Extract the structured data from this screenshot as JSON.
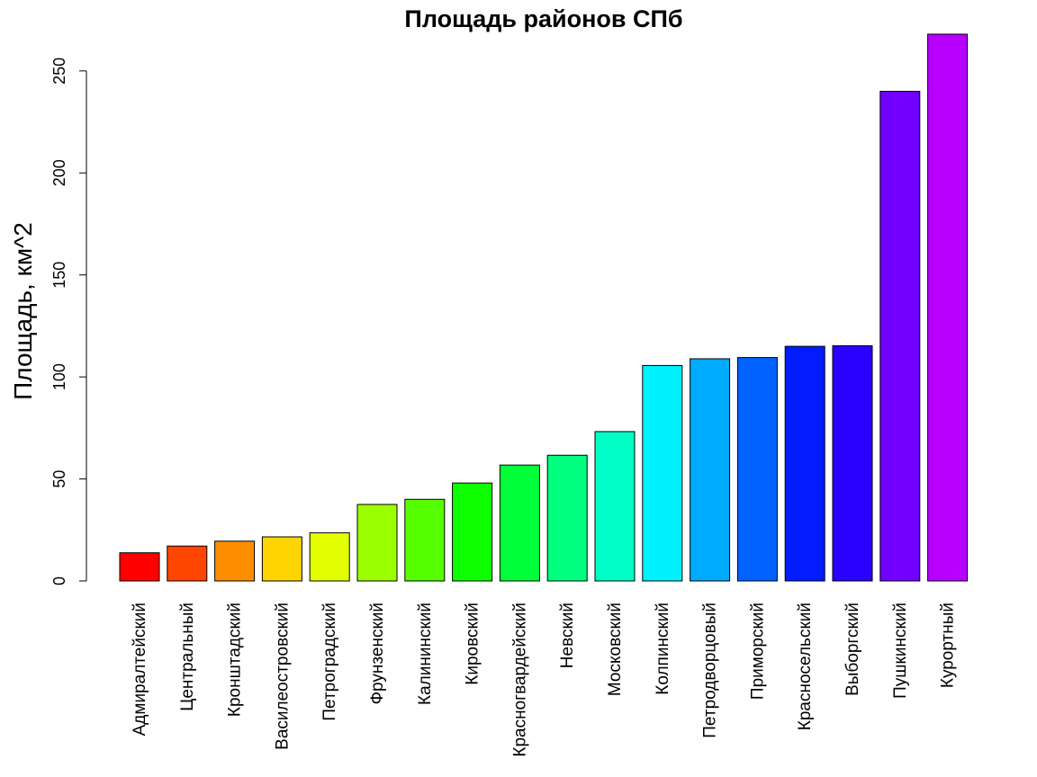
{
  "chart_data": {
    "type": "bar",
    "title": "Площадь районов СПб",
    "xlabel": "",
    "ylabel": "Площадь, км^2",
    "ylim": [
      0,
      268
    ],
    "yticks": [
      "0",
      "50",
      "100",
      "150",
      "200",
      "250"
    ],
    "categories": [
      "Адмиралтейский",
      "Центральный",
      "Кронштадский",
      "Василеостровский",
      "Петроградский",
      "Фрунзенский",
      "Калининский",
      "Кировский",
      "Красногвардейский",
      "Невский",
      "Московский",
      "Колпинский",
      "Петродворцовый",
      "Приморский",
      "Красносельский",
      "Выборгский",
      "Пушкинский",
      "Курортный"
    ],
    "values": [
      13.8,
      17.1,
      19.5,
      21.6,
      23.6,
      37.5,
      40,
      48,
      56.8,
      61.6,
      73.2,
      105.6,
      108.9,
      109.5,
      115,
      115.3,
      240,
      268
    ],
    "colors": [
      "#FF0000",
      "#FF4600",
      "#FF8D00",
      "#FFD400",
      "#E3FF00",
      "#9CFF00",
      "#55FF00",
      "#0EFF00",
      "#00FF38",
      "#00FF7F",
      "#00FFC6",
      "#00F1FF",
      "#00AAFF",
      "#0063FF",
      "#001CFF",
      "#2A00FF",
      "#7100FF",
      "#B800FF"
    ],
    "grid": false,
    "legend": "none"
  }
}
